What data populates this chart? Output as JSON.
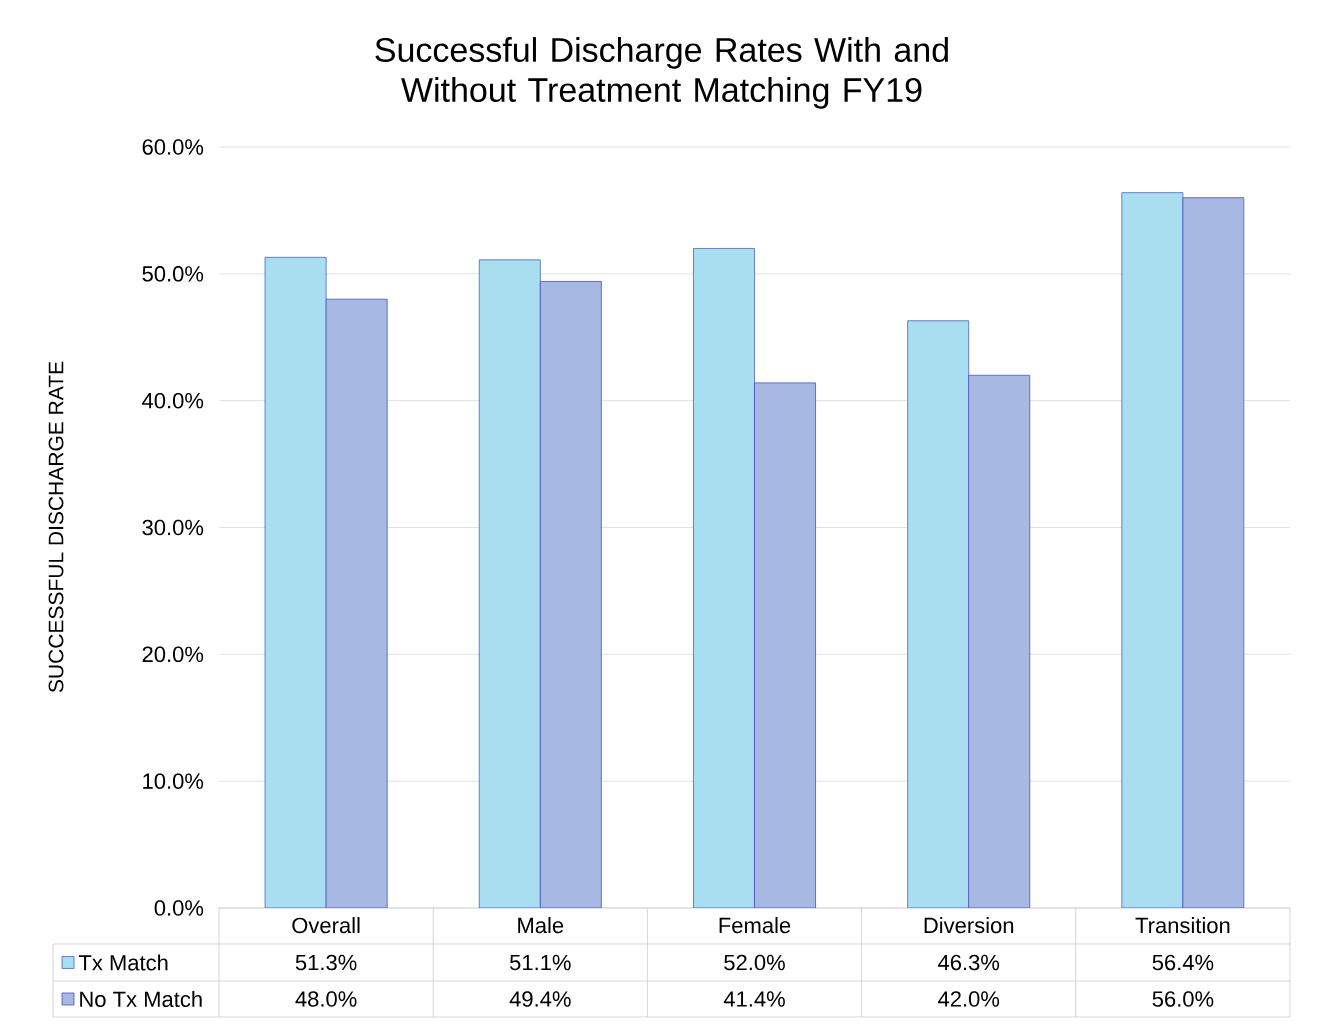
{
  "chart_data": {
    "type": "bar",
    "title": "Successful Discharge Rates With and Without Treatment Matching FY19",
    "ylabel": "SUCCESSFUL DISCHARGE RATE",
    "categories": [
      "Overall",
      "Male",
      "Female",
      "Diversion",
      "Transition"
    ],
    "series": [
      {
        "name": "Tx Match",
        "color": "#a8def0",
        "values": [
          51.3,
          51.1,
          52.0,
          46.3,
          56.4
        ],
        "value_labels": [
          "51.3%",
          "51.1%",
          "52.0%",
          "46.3%",
          "56.4%"
        ]
      },
      {
        "name": "No Tx Match",
        "color": "#a7b8e2",
        "values": [
          48.0,
          49.4,
          41.4,
          42.0,
          56.0
        ],
        "value_labels": [
          "48.0%",
          "49.4%",
          "41.4%",
          "42.0%",
          "56.0%"
        ]
      }
    ],
    "ylim": [
      0,
      60
    ],
    "yticks": [
      {
        "value": 0,
        "label": "0.0%"
      },
      {
        "value": 10,
        "label": "10.0%"
      },
      {
        "value": 20,
        "label": "20.0%"
      },
      {
        "value": 30,
        "label": "30.0%"
      },
      {
        "value": 40,
        "label": "40.0%"
      },
      {
        "value": 50,
        "label": "50.0%"
      },
      {
        "value": 60,
        "label": "60.0%"
      }
    ],
    "grid": "y",
    "legend": "bottom"
  }
}
